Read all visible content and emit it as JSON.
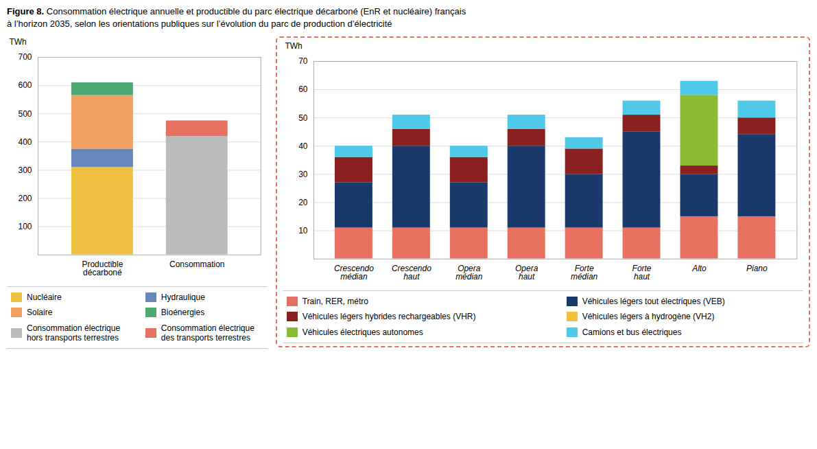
{
  "chart_data": [
    {
      "type": "bar",
      "title": "Figure 8.",
      "subtitle": "Consommation électrique annuelle et productible du parc électrique décarboné (EnR et nucléaire) français\nà l’horizon 2035, selon les orientations publiques sur l’évolution du parc de production d’électricité",
      "stacked": true,
      "categories": [
        "Productible\ndécarboné",
        "Consommation"
      ],
      "series": [
        {
          "name": "Nucléaire",
          "color": "#F0C040",
          "values": [
            310,
            null
          ]
        },
        {
          "name": "Hydraulique",
          "color": "#6688BB",
          "values": [
            65,
            null
          ]
        },
        {
          "name": "Solaire",
          "color": "#F0A060",
          "values": [
            190,
            null
          ]
        },
        {
          "name": "Bioénergies",
          "color": "#4DAA70",
          "values": [
            45,
            null
          ]
        },
        {
          "name": "Consommation électrique\nhors transports terrestres",
          "color": "#BBBBBB",
          "values": [
            null,
            420
          ]
        },
        {
          "name": "Consommation électrique\ndes transports terrestres",
          "color": "#E87060",
          "values": [
            null,
            55
          ]
        }
      ],
      "y_label": "TWh",
      "ylim": [
        0,
        700
      ],
      "yticks": [
        100,
        200,
        300,
        400,
        500,
        600,
        700
      ],
      "grid": true,
      "legend": "bottom"
    },
    {
      "type": "bar",
      "stacked": true,
      "categories": [
        "Crescendo\nmédian",
        "Crescendo\nhaut",
        "Opera\nmédian",
        "Opera\nhaut",
        "Forte\nmédian",
        "Forte\nhaut",
        "Alto",
        "Piano"
      ],
      "series": [
        {
          "name": "Train, RER, métro",
          "color": "#E87060",
          "values": [
            11,
            11,
            11,
            11,
            11,
            11,
            15,
            15
          ]
        },
        {
          "name": "Véhicules légers tout électriques (VEB)",
          "color": "#1A3A6B",
          "values": [
            16,
            29,
            16,
            29,
            19,
            34,
            15,
            29
          ]
        },
        {
          "name": "Véhicules légers hybrides rechargeables (VHR)",
          "color": "#8B2020",
          "values": [
            9,
            6,
            9,
            6,
            9,
            6,
            3,
            6
          ]
        },
        {
          "name": "Véhicules légers à hydrogène (VH2)",
          "color": "#F0C040",
          "values": [
            0,
            0,
            0,
            0,
            0,
            0,
            0,
            0
          ]
        },
        {
          "name": "Véhicules électriques autonomes",
          "color": "#88BB30",
          "values": [
            0,
            0,
            0,
            0,
            0,
            0,
            25,
            0
          ]
        },
        {
          "name": "Camions et bus électriques",
          "color": "#50C8E8",
          "values": [
            4,
            5,
            4,
            5,
            4,
            5,
            5,
            6
          ]
        }
      ],
      "y_label": "TWh",
      "ylim": [
        0,
        70
      ],
      "yticks": [
        10,
        20,
        30,
        40,
        50,
        60,
        70
      ],
      "grid": true,
      "legend": "bottom"
    }
  ]
}
